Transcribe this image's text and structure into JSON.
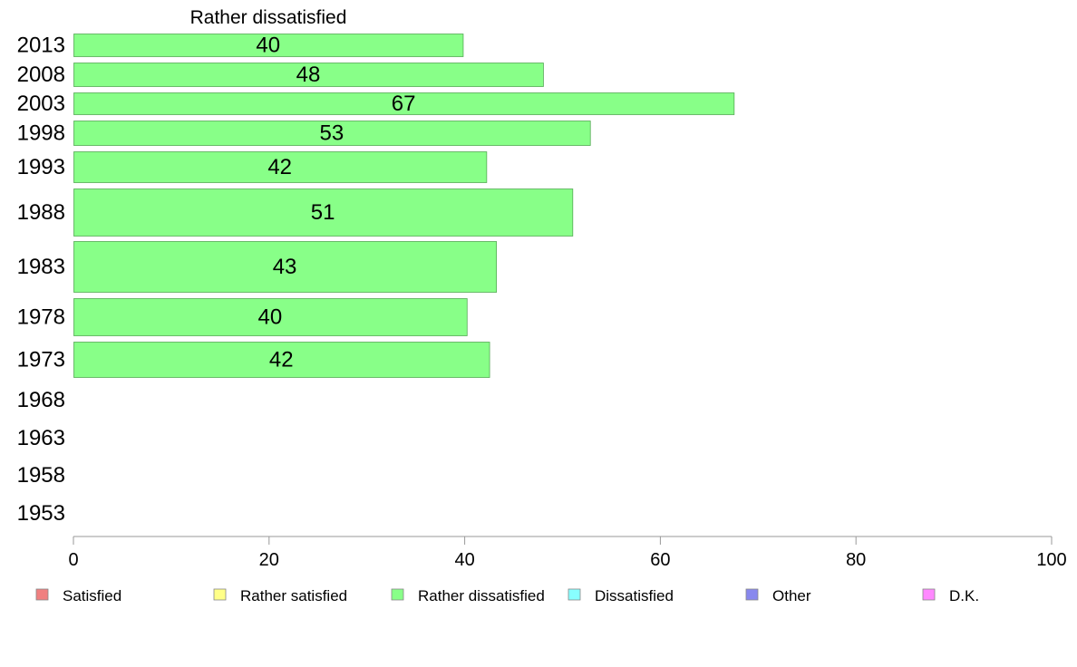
{
  "chart_data": {
    "type": "bar",
    "orientation": "horizontal",
    "title": "Rather dissatisfied",
    "categories": [
      "2013",
      "2008",
      "2003",
      "1998",
      "1993",
      "1988",
      "1983",
      "1978",
      "1973",
      "1968",
      "1963",
      "1958",
      "1953"
    ],
    "series": [
      {
        "name": "Rather dissatisfied",
        "values": [
          39.8,
          48.0,
          67.5,
          52.8,
          42.2,
          51.0,
          43.2,
          40.2,
          42.5,
          null,
          null,
          null,
          null
        ],
        "labels": [
          "40",
          "48",
          "67",
          "53",
          "42",
          "51",
          "43",
          "40",
          "42",
          "",
          "",
          "",
          ""
        ],
        "color": "#88ff88"
      }
    ],
    "xlim": [
      0,
      100
    ],
    "xticks": [
      0,
      20,
      40,
      60,
      80,
      100
    ],
    "grid": false,
    "legend": {
      "placement": "bottom",
      "entries": [
        {
          "label": "Satisfied",
          "color": "#f08080"
        },
        {
          "label": "Rather satisfied",
          "color": "#ffff88"
        },
        {
          "label": "Rather dissatisfied",
          "color": "#88ff88"
        },
        {
          "label": "Dissatisfied",
          "color": "#88ffff"
        },
        {
          "label": "Other",
          "color": "#8888ee"
        },
        {
          "label": "D.K.",
          "color": "#ff88ff"
        }
      ]
    }
  }
}
